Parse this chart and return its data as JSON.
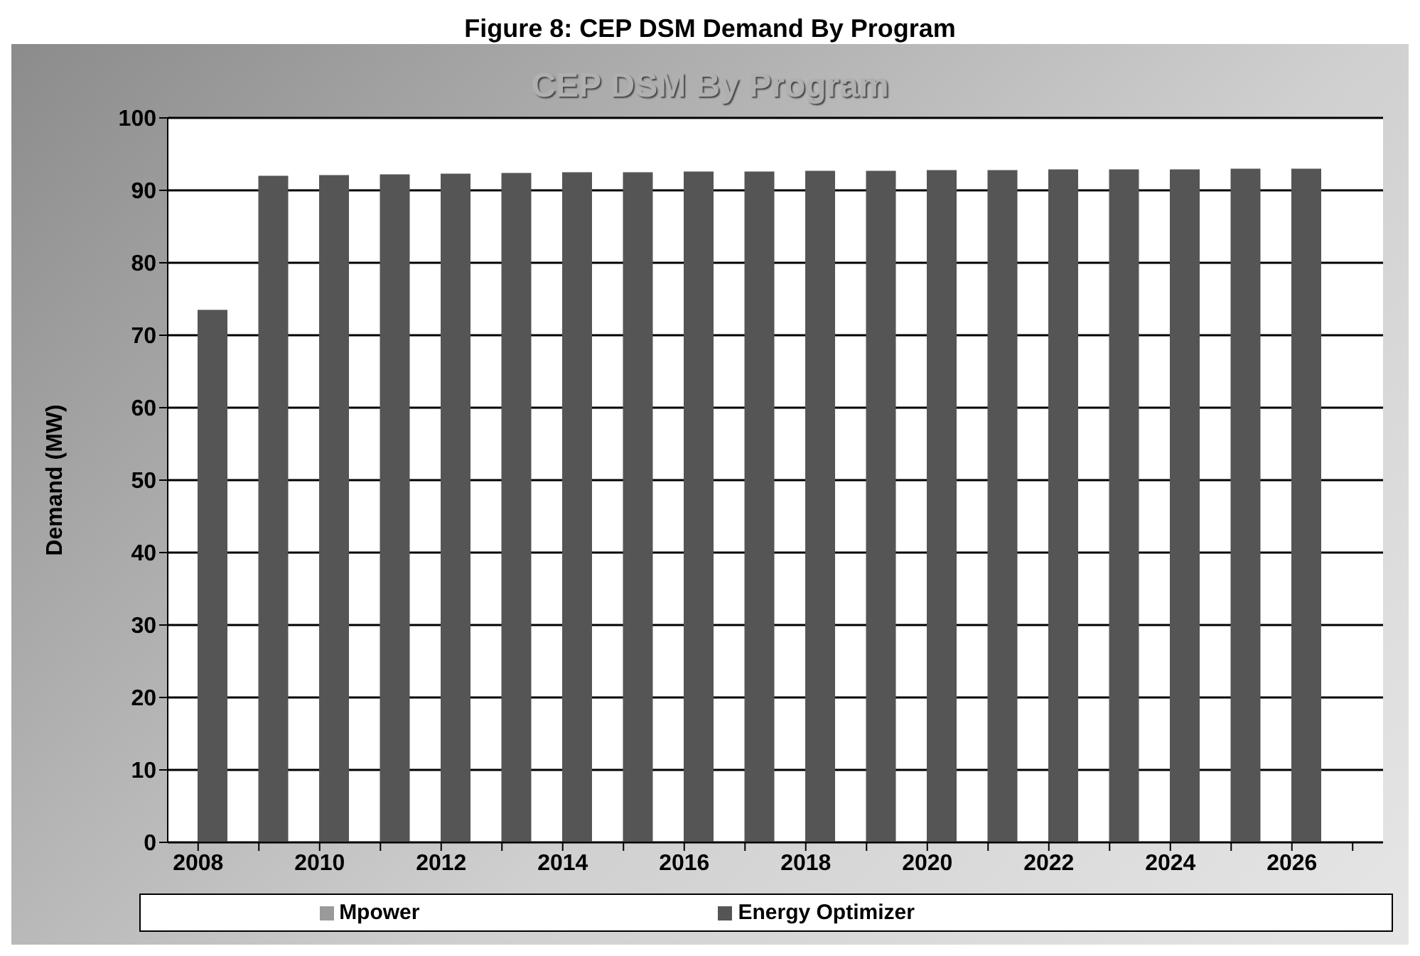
{
  "chart_data": {
    "type": "bar",
    "title": "Figure 8: CEP DSM Demand By Program",
    "subtitle": "CEP DSM By Program",
    "ylabel": "Demand (MW)",
    "categories": [
      "2008",
      null,
      "2010",
      null,
      "2012",
      null,
      "2014",
      null,
      "2016",
      null,
      "2018",
      null,
      "2020",
      null,
      "2022",
      null,
      "2024",
      null,
      "2026",
      null
    ],
    "series": [
      {
        "name": "Mpower",
        "color": "#9a9a9a",
        "values": [
          0,
          0,
          0,
          0,
          0,
          0,
          0,
          0,
          0,
          0,
          0,
          0,
          0,
          0,
          0,
          0,
          0,
          0,
          0,
          null
        ]
      },
      {
        "name": "Energy Optimizer",
        "color": "#555555",
        "values": [
          73.5,
          92.0,
          92.1,
          92.2,
          92.3,
          92.4,
          92.5,
          92.5,
          92.6,
          92.6,
          92.7,
          92.7,
          92.8,
          92.8,
          92.9,
          92.9,
          92.9,
          93.0,
          93.0,
          null
        ]
      }
    ],
    "ylim": [
      0,
      100
    ],
    "yticks": [
      0,
      10,
      20,
      30,
      40,
      50,
      60,
      70,
      80,
      90,
      100
    ],
    "grid": "y",
    "legend": "bottom"
  }
}
